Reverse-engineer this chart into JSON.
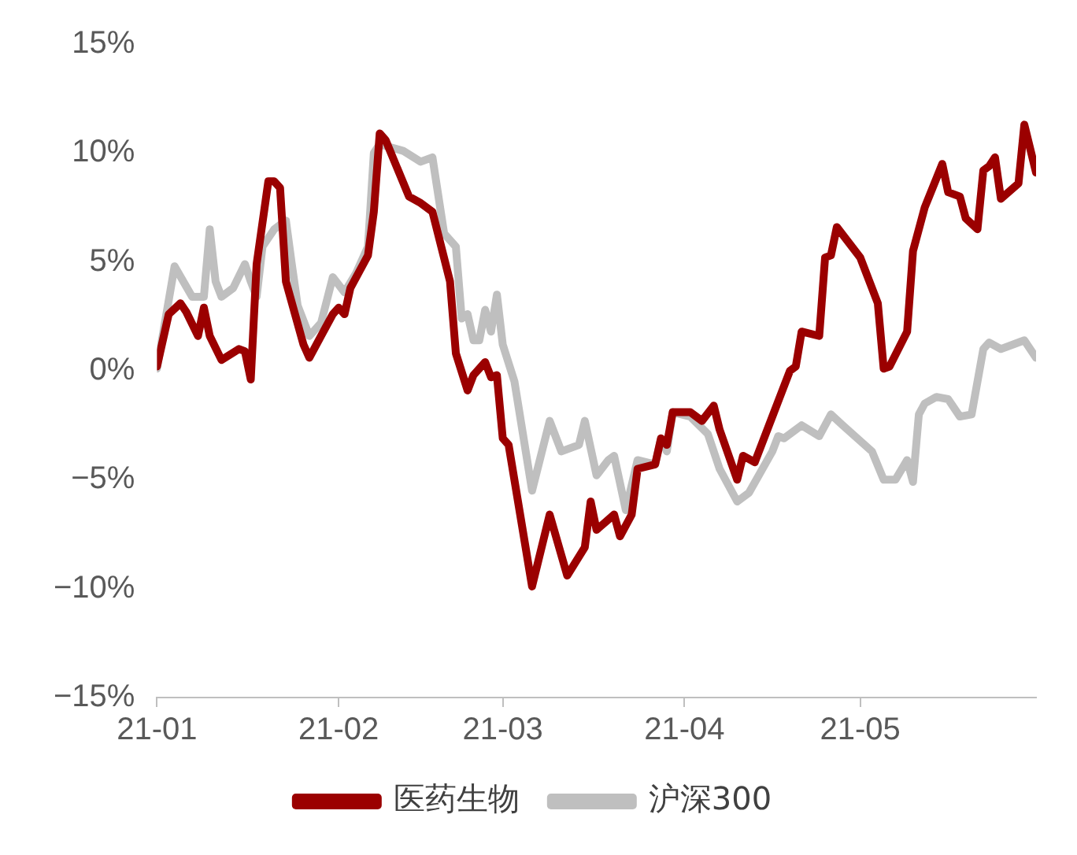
{
  "chart_data": {
    "type": "line",
    "xlim": [
      "--01-01",
      "--05-31"
    ],
    "xticks": [
      {
        "value": "--01-01",
        "label": "21-01"
      },
      {
        "value": "--02-01",
        "label": "21-02"
      },
      {
        "value": "--03-01",
        "label": "21-03"
      },
      {
        "value": "--04-01",
        "label": "21-04"
      },
      {
        "value": "--05-01",
        "label": "21-05"
      }
    ],
    "ylim": [
      -15,
      15
    ],
    "yticks": [
      {
        "value": -15,
        "label": "−15%"
      },
      {
        "value": -10,
        "label": "−10%"
      },
      {
        "value": -5,
        "label": "−5%"
      },
      {
        "value": 0,
        "label": "0%"
      },
      {
        "value": 5,
        "label": "5%"
      },
      {
        "value": 10,
        "label": "10%"
      },
      {
        "value": 15,
        "label": "15%"
      }
    ],
    "grid": false,
    "legend": "bottom",
    "marker": "none",
    "line_style": "solid",
    "series": [
      {
        "name": "医药生物",
        "color": "#9b0000",
        "x": [
          "--01-01",
          "--01-03",
          "--01-05",
          "--01-06",
          "--01-08",
          "--01-09",
          "--01-10",
          "--01-12",
          "--01-15",
          "--01-16",
          "--01-17",
          "--01-18",
          "--01-20",
          "--01-21",
          "--01-22",
          "--01-23",
          "--01-26",
          "--01-27",
          "--01-29",
          "--01-31",
          "--02-01",
          "--02-02",
          "--02-03",
          "--02-06",
          "--02-07",
          "--02-08",
          "--02-09",
          "--02-13",
          "--02-15",
          "--02-17",
          "--02-20",
          "--02-21",
          "--02-23",
          "--02-24",
          "--02-26",
          "--02-27",
          "--02-28",
          "--03-01",
          "--03-02",
          "--03-06",
          "--03-09",
          "--03-12",
          "--03-15",
          "--03-16",
          "--03-17",
          "--03-20",
          "--03-21",
          "--03-23",
          "--03-24",
          "--03-27",
          "--03-28",
          "--03-29",
          "--03-30",
          "--04-02",
          "--04-04",
          "--04-06",
          "--04-07",
          "--04-10",
          "--04-11",
          "--04-13",
          "--04-16",
          "--04-19",
          "--04-20",
          "--04-21",
          "--04-24",
          "--04-25",
          "--04-26",
          "--04-27",
          "--05-01",
          "--05-04",
          "--05-05",
          "--05-06",
          "--05-09",
          "--05-10",
          "--05-12",
          "--05-15",
          "--05-16",
          "--05-18",
          "--05-19",
          "--05-21",
          "--05-22",
          "--05-23",
          "--05-24",
          "--05-25",
          "--05-28",
          "--05-29",
          "--05-31"
        ],
        "values": [
          0.2,
          2.6,
          3.1,
          2.7,
          1.6,
          2.9,
          1.6,
          0.5,
          1.0,
          0.9,
          -0.4,
          4.9,
          8.7,
          8.7,
          8.4,
          4.1,
          1.2,
          0.6,
          1.6,
          2.6,
          2.9,
          2.6,
          3.8,
          5.3,
          7.3,
          10.9,
          10.6,
          8.0,
          7.7,
          7.3,
          4.1,
          0.8,
          -0.9,
          -0.2,
          0.4,
          -0.3,
          -0.2,
          -3.1,
          -3.4,
          -9.9,
          -6.6,
          -9.4,
          -8.1,
          -6.0,
          -7.3,
          -6.6,
          -7.6,
          -6.6,
          -4.5,
          -4.3,
          -3.1,
          -3.4,
          -1.9,
          -1.9,
          -2.3,
          -1.6,
          -2.7,
          -5.0,
          -3.9,
          -4.2,
          -2.1,
          0.0,
          0.2,
          1.8,
          1.6,
          5.2,
          5.3,
          6.6,
          5.2,
          3.1,
          0.1,
          0.2,
          1.8,
          5.5,
          7.5,
          9.5,
          8.2,
          8.0,
          7.0,
          6.5,
          9.2,
          9.4,
          9.8,
          7.9,
          8.6,
          11.3,
          9.1
        ]
      },
      {
        "name": "沪深300",
        "color": "#bfbfbf",
        "x": [
          "--01-01",
          "--01-04",
          "--01-07",
          "--01-09",
          "--01-10",
          "--01-11",
          "--01-12",
          "--01-14",
          "--01-16",
          "--01-17",
          "--01-18",
          "--01-19",
          "--01-21",
          "--01-23",
          "--01-24",
          "--01-25",
          "--01-27",
          "--01-29",
          "--01-31",
          "--02-02",
          "--02-04",
          "--02-06",
          "--02-07",
          "--02-08",
          "--02-12",
          "--02-15",
          "--02-17",
          "--02-19",
          "--02-21",
          "--02-22",
          "--02-23",
          "--02-24",
          "--02-25",
          "--02-26",
          "--02-27",
          "--02-28",
          "--03-01",
          "--03-03",
          "--03-06",
          "--03-09",
          "--03-11",
          "--03-14",
          "--03-15",
          "--03-17",
          "--03-19",
          "--03-20",
          "--03-22",
          "--03-24",
          "--03-27",
          "--03-28",
          "--03-29",
          "--03-30",
          "--04-02",
          "--04-05",
          "--04-07",
          "--04-10",
          "--04-12",
          "--04-16",
          "--04-17",
          "--04-18",
          "--04-20",
          "--04-21",
          "--04-24",
          "--04-26",
          "--04-28",
          "--05-03",
          "--05-05",
          "--05-07",
          "--05-09",
          "--05-10",
          "--05-11",
          "--05-12",
          "--05-14",
          "--05-16",
          "--05-18",
          "--05-20",
          "--05-22",
          "--05-23",
          "--05-25",
          "--05-28",
          "--05-29",
          "--05-31"
        ],
        "values": [
          0.1,
          4.8,
          3.4,
          3.4,
          6.5,
          4.1,
          3.4,
          3.8,
          4.9,
          4.1,
          3.4,
          5.7,
          6.5,
          6.9,
          4.9,
          3.0,
          1.6,
          2.2,
          4.3,
          3.6,
          4.5,
          5.7,
          10.0,
          10.4,
          10.1,
          9.6,
          9.8,
          6.3,
          5.7,
          2.4,
          2.6,
          1.4,
          1.4,
          2.8,
          1.8,
          3.5,
          1.2,
          -0.5,
          -5.5,
          -2.3,
          -3.7,
          -3.4,
          -2.3,
          -4.8,
          -4.1,
          -3.9,
          -6.4,
          -4.1,
          -4.3,
          -3.1,
          -3.7,
          -1.9,
          -2.1,
          -2.9,
          -4.5,
          -6.0,
          -5.6,
          -3.7,
          -3.0,
          -3.1,
          -2.7,
          -2.5,
          -3.0,
          -2.0,
          -2.5,
          -3.7,
          -5.0,
          -5.0,
          -4.1,
          -5.1,
          -2.0,
          -1.5,
          -1.2,
          -1.3,
          -2.1,
          -2.0,
          1.0,
          1.3,
          1.0,
          1.3,
          1.4,
          0.6
        ]
      }
    ]
  }
}
